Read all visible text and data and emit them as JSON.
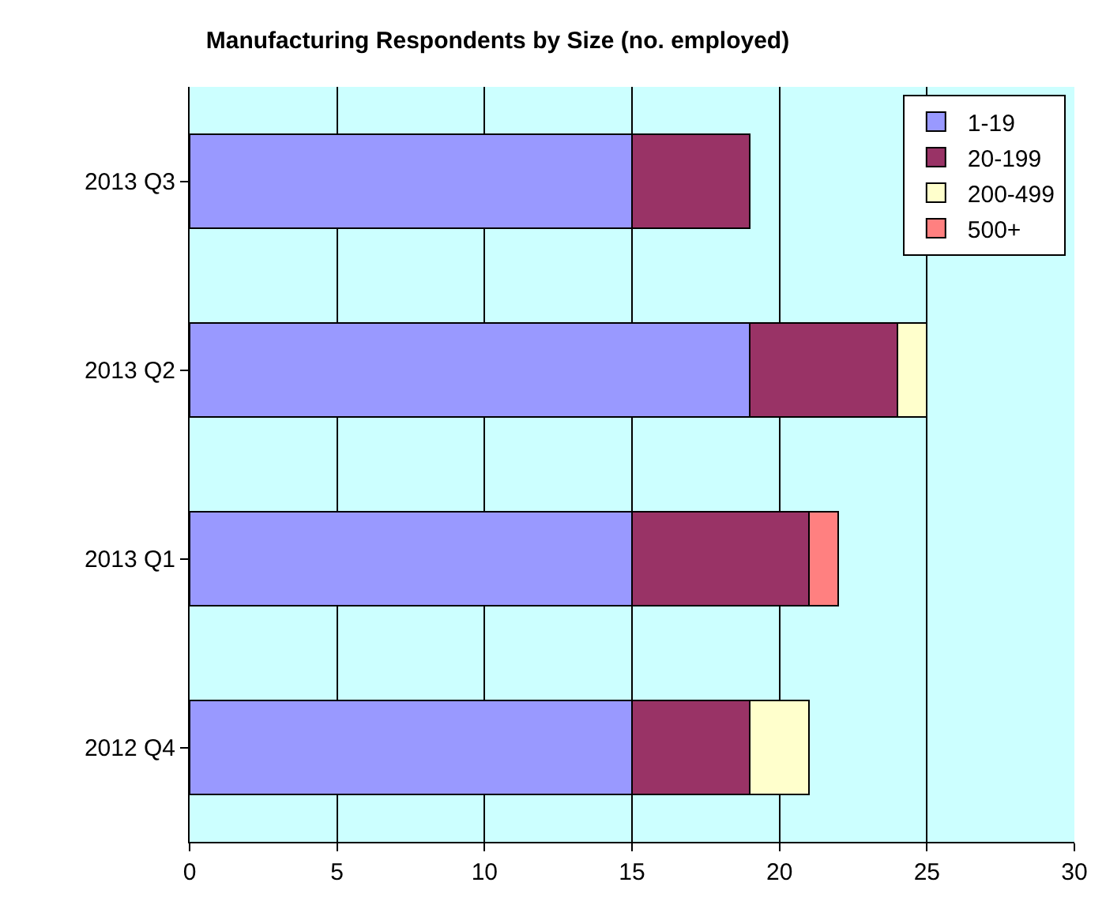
{
  "chart_data": {
    "type": "bar",
    "orientation": "horizontal",
    "stacked": true,
    "title": "Manufacturing Respondents by Size (no. employed)",
    "categories": [
      "2013 Q3",
      "2013 Q2",
      "2013 Q1",
      "2012 Q4"
    ],
    "series": [
      {
        "name": "1-19",
        "color": "#9999ff",
        "values": [
          15,
          19,
          15,
          15
        ]
      },
      {
        "name": "20-199",
        "color": "#993366",
        "values": [
          4,
          5,
          6,
          4
        ]
      },
      {
        "name": "200-499",
        "color": "#ffffcc",
        "values": [
          null,
          1,
          null,
          2
        ]
      },
      {
        "name": "500+",
        "color": "#ff8080",
        "values": [
          null,
          null,
          1,
          null
        ]
      }
    ],
    "xlim": [
      0,
      30
    ],
    "xticks": [
      0,
      5,
      10,
      15,
      20,
      25,
      30
    ],
    "grid": "x",
    "legend": "top right"
  }
}
